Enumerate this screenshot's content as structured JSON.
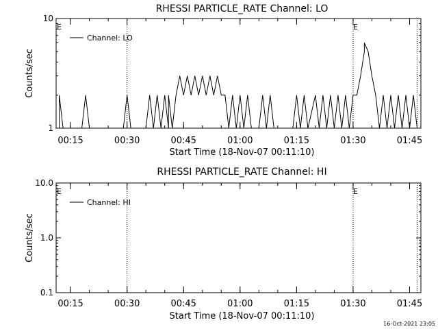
{
  "colors": {
    "line": "#000000",
    "background": "#ffffff"
  },
  "footer_timestamp": "16-Oct-2021 23:05",
  "chart_data": [
    {
      "type": "line",
      "title": "RHESSI PARTICLE_RATE Channel: LO",
      "xlabel": "Start Time (18-Nov-07 00:11:10)",
      "ylabel": "Counts/sec",
      "yscale": "log",
      "ylim": [
        1,
        10
      ],
      "yticks": [
        1,
        10
      ],
      "ytick_labels": [
        "1",
        "10"
      ],
      "xticks": [
        "00:15",
        "00:30",
        "00:45",
        "01:00",
        "01:15",
        "01:30",
        "01:45"
      ],
      "event_lines": [
        "00:30",
        "01:30",
        "01:47"
      ],
      "event_markers": [
        {
          "label": "E",
          "at": "00:11"
        },
        {
          "label": "E",
          "at": "01:30"
        }
      ],
      "legend": {
        "label": "Channel: LO",
        "position": "top-left"
      },
      "series": [
        {
          "name": "Channel: LO",
          "points": [
            [
              "00:11",
              1
            ],
            [
              "00:12",
              1
            ],
            [
              "00:12",
              2
            ],
            [
              "00:13",
              1
            ],
            [
              "00:18",
              1
            ],
            [
              "00:19",
              2
            ],
            [
              "00:20",
              1
            ],
            [
              "00:29",
              1
            ],
            [
              "00:30",
              2
            ],
            [
              "00:31",
              1
            ],
            [
              "00:35",
              1
            ],
            [
              "00:36",
              2
            ],
            [
              "00:37",
              1
            ],
            [
              "00:38",
              2
            ],
            [
              "00:39",
              1
            ],
            [
              "00:40",
              2
            ],
            [
              "00:41",
              1
            ],
            [
              "00:41",
              2
            ],
            [
              "00:42",
              1
            ],
            [
              "00:43",
              2
            ],
            [
              "00:44",
              3
            ],
            [
              "00:45",
              2
            ],
            [
              "00:46",
              3
            ],
            [
              "00:47",
              2
            ],
            [
              "00:48",
              3
            ],
            [
              "00:49",
              2
            ],
            [
              "00:50",
              3
            ],
            [
              "00:51",
              2
            ],
            [
              "00:52",
              3
            ],
            [
              "00:53",
              2
            ],
            [
              "00:54",
              3
            ],
            [
              "00:55",
              2
            ],
            [
              "00:56",
              2
            ],
            [
              "00:57",
              1
            ],
            [
              "00:58",
              2
            ],
            [
              "00:59",
              1
            ],
            [
              "01:00",
              2
            ],
            [
              "01:01",
              1
            ],
            [
              "01:02",
              2
            ],
            [
              "01:03",
              1
            ],
            [
              "01:05",
              1
            ],
            [
              "01:06",
              2
            ],
            [
              "01:07",
              1
            ],
            [
              "01:08",
              2
            ],
            [
              "01:09",
              1
            ],
            [
              "01:14",
              1
            ],
            [
              "01:15",
              2
            ],
            [
              "01:16",
              1
            ],
            [
              "01:17",
              2
            ],
            [
              "01:18",
              1
            ],
            [
              "01:20",
              2
            ],
            [
              "01:21",
              1
            ],
            [
              "01:22",
              2
            ],
            [
              "01:23",
              1
            ],
            [
              "01:24",
              2
            ],
            [
              "01:25",
              1
            ],
            [
              "01:26",
              2
            ],
            [
              "01:27",
              1
            ],
            [
              "01:28",
              2
            ],
            [
              "01:29",
              1
            ],
            [
              "01:30",
              2
            ],
            [
              "01:31",
              2
            ],
            [
              "01:32",
              3
            ],
            [
              "01:33",
              5
            ],
            [
              "01:33",
              6
            ],
            [
              "01:34",
              5
            ],
            [
              "01:35",
              3
            ],
            [
              "01:36",
              2
            ],
            [
              "01:37",
              1
            ],
            [
              "01:38",
              2
            ],
            [
              "01:39",
              1
            ],
            [
              "01:40",
              2
            ],
            [
              "01:41",
              1
            ],
            [
              "01:42",
              2
            ],
            [
              "01:43",
              1
            ],
            [
              "01:44",
              2
            ],
            [
              "01:45",
              1
            ],
            [
              "01:46",
              2
            ],
            [
              "01:47",
              1
            ]
          ]
        }
      ]
    },
    {
      "type": "line",
      "title": "RHESSI PARTICLE_RATE Channel: HI",
      "xlabel": "Start Time (18-Nov-07 00:11:10)",
      "ylabel": "Counts/sec",
      "yscale": "log",
      "ylim": [
        0.1,
        10
      ],
      "yticks": [
        0.1,
        1,
        10
      ],
      "ytick_labels": [
        "0.1",
        "1.0",
        "10.0"
      ],
      "xticks": [
        "00:15",
        "00:30",
        "00:45",
        "01:00",
        "01:15",
        "01:30",
        "01:45"
      ],
      "event_lines": [
        "00:30",
        "01:30",
        "01:47"
      ],
      "event_markers": [
        {
          "label": "E",
          "at": "00:11"
        },
        {
          "label": "E",
          "at": "01:30"
        }
      ],
      "legend": {
        "label": "Channel: HI",
        "position": "top-left"
      },
      "series": [
        {
          "name": "Channel: HI",
          "points": []
        }
      ]
    }
  ]
}
